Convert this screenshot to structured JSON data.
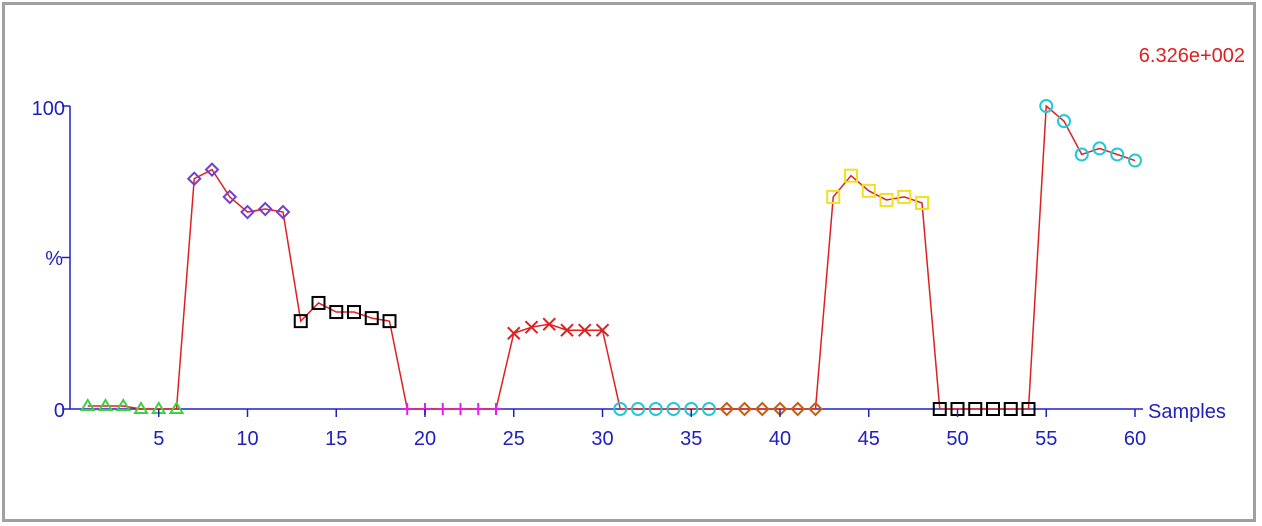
{
  "chart_data": {
    "type": "line",
    "scale_label": "6.326e+002",
    "ylabel": "%",
    "xlabel": "Samples",
    "y_ticks": [
      "100",
      "0"
    ],
    "x_ticks": [
      5,
      10,
      15,
      20,
      25,
      30,
      35,
      40,
      45,
      50,
      55,
      60
    ],
    "ylim": [
      0,
      100
    ],
    "xlim": [
      0,
      60
    ],
    "grid": false,
    "line_color": "#e02020",
    "axis_color": "#2020c0",
    "series": [
      {
        "marker": "triangle",
        "color": "#40d040",
        "x": [
          1,
          2,
          3,
          4,
          5,
          6
        ],
        "y": [
          1,
          1,
          1,
          0,
          0,
          0
        ]
      },
      {
        "marker": "diamond",
        "color": "#7040d0",
        "x": [
          7,
          8,
          9,
          10,
          11,
          12
        ],
        "y": [
          76,
          79,
          70,
          65,
          66,
          65
        ]
      },
      {
        "marker": "square",
        "color": "#000000",
        "x": [
          13,
          14,
          15,
          16,
          17,
          18
        ],
        "y": [
          29,
          35,
          32,
          32,
          30,
          29
        ]
      },
      {
        "marker": "plus",
        "color": "#e020e0",
        "x": [
          19,
          20,
          21,
          22,
          23,
          24
        ],
        "y": [
          0,
          0,
          0,
          0,
          0,
          0
        ]
      },
      {
        "marker": "x",
        "color": "#e02020",
        "x": [
          25,
          26,
          27,
          28,
          29,
          30
        ],
        "y": [
          25,
          27,
          28,
          26,
          26,
          26
        ]
      },
      {
        "marker": "circle",
        "color": "#20c8d8",
        "x": [
          31,
          32,
          33,
          34,
          35,
          36
        ],
        "y": [
          0,
          0,
          0,
          0,
          0,
          0
        ]
      },
      {
        "marker": "diamond",
        "color": "#c06010",
        "x": [
          37,
          38,
          39,
          40,
          41,
          42
        ],
        "y": [
          0,
          0,
          0,
          0,
          0,
          0
        ]
      },
      {
        "marker": "square",
        "color": "#f0e020",
        "x": [
          43,
          44,
          45,
          46,
          47,
          48
        ],
        "y": [
          70,
          77,
          72,
          69,
          70,
          68
        ]
      },
      {
        "marker": "square",
        "color": "#000000",
        "x": [
          49,
          50,
          51,
          52,
          53,
          54
        ],
        "y": [
          0,
          0,
          0,
          0,
          0,
          0
        ]
      },
      {
        "marker": "circle",
        "color": "#20c8d8",
        "x": [
          55,
          56,
          57,
          58,
          59,
          60
        ],
        "y": [
          100,
          95,
          84,
          86,
          84,
          82
        ]
      }
    ]
  }
}
